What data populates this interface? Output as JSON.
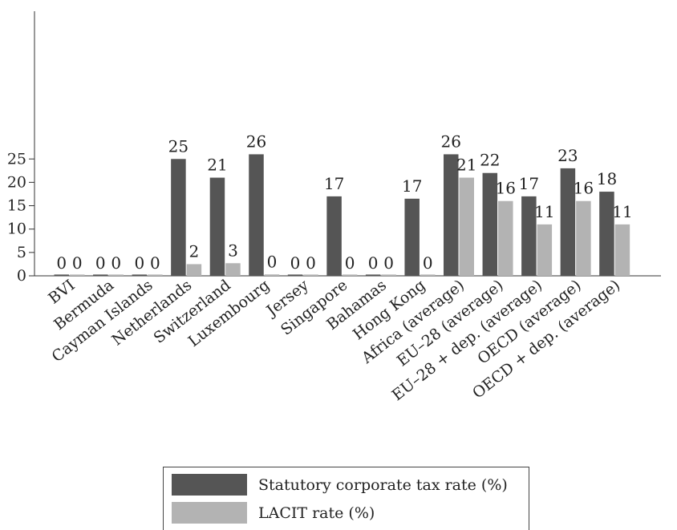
{
  "chart_data": {
    "type": "bar",
    "categories": [
      "BVI",
      "Bermuda",
      "Cayman Islands",
      "Netherlands",
      "Switzerland",
      "Luxembourg",
      "Jersey",
      "Singapore",
      "Bahamas",
      "Hong Kong",
      "Africa (average)",
      "EU–28 (average)",
      "EU–28 + dep. (average)",
      "OECD (average)",
      "OECD + dep. (average)"
    ],
    "series": [
      {
        "name": "Statutory corporate tax rate (%)",
        "values": [
          0,
          0,
          0,
          25,
          21,
          26,
          0,
          17,
          0,
          16.5,
          26,
          22,
          17,
          23,
          18
        ],
        "labels": [
          "0",
          "0",
          "0",
          "25",
          "21",
          "26",
          "0",
          "17",
          "0",
          "17",
          "26",
          "22",
          "17",
          "23",
          "18"
        ],
        "color": "#555555"
      },
      {
        "name": "LACIT rate (%)",
        "values": [
          0,
          0,
          0,
          2.5,
          2.7,
          0.3,
          0,
          0,
          0,
          0,
          21,
          16,
          11,
          16,
          11
        ],
        "labels": [
          "0",
          "0",
          "0",
          "2",
          "3",
          "0",
          "0",
          "0",
          "0",
          "0",
          "21",
          "16",
          "11",
          "16",
          "11"
        ],
        "color": "#b3b3b3"
      }
    ],
    "ylim": [
      0,
      28
    ],
    "yticks": [
      0,
      5,
      10,
      15,
      20,
      25
    ],
    "xlabel": "",
    "ylabel": "",
    "grid": false,
    "legend_position": "bottom"
  }
}
